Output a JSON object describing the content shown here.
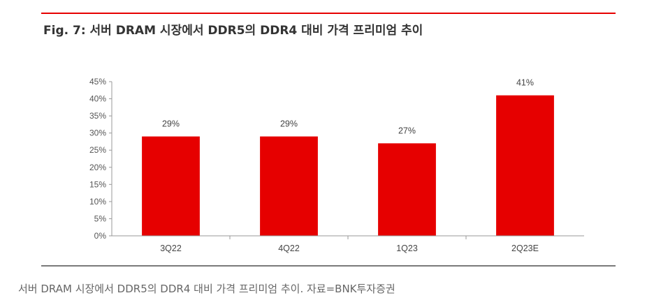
{
  "figure": {
    "title": "Fig. 7: 서버 DRAM 시장에서 DDR5의 DDR4 대비 가격 프리미엄 추이",
    "caption": "서버 DRAM 시장에서 DDR5의 DDR4 대비 가격 프리미엄 추이. 자료=BNK투자증권"
  },
  "colors": {
    "bar": "#e60000",
    "rule_top": "#e60000",
    "axis": "#999999"
  },
  "chart_data": {
    "type": "bar",
    "title": "Fig. 7: 서버 DRAM 시장에서 DDR5의 DDR4 대비 가격 프리미엄 추이",
    "xlabel": "",
    "ylabel": "",
    "categories": [
      "3Q22",
      "4Q22",
      "1Q23",
      "2Q23E"
    ],
    "values": [
      29,
      29,
      27,
      41
    ],
    "data_labels": [
      "29%",
      "29%",
      "27%",
      "41%"
    ],
    "ylim": [
      0,
      45
    ],
    "yticks": [
      0,
      5,
      10,
      15,
      20,
      25,
      30,
      35,
      40,
      45
    ],
    "ytick_labels": [
      "0%",
      "5%",
      "10%",
      "15%",
      "20%",
      "25%",
      "30%",
      "35%",
      "40%",
      "45%"
    ],
    "grid": false,
    "legend": "none"
  }
}
